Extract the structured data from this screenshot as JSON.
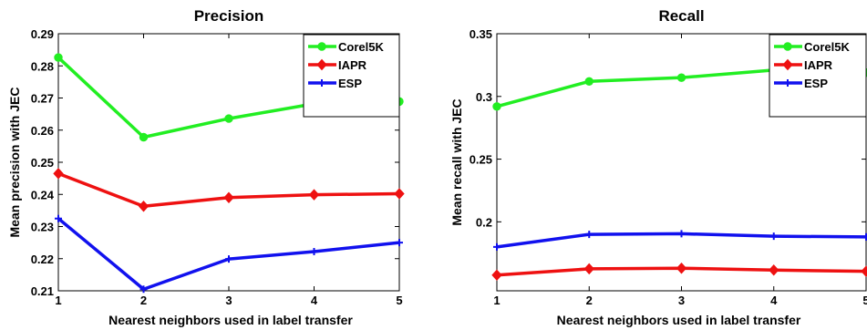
{
  "chart_data": [
    {
      "type": "line",
      "title": "Precision",
      "xlabel": "Nearest neighbors used in label transfer",
      "ylabel": "Mean precision with JEC",
      "x": [
        1,
        2,
        3,
        4,
        5
      ],
      "xlim": [
        1,
        5
      ],
      "ylim": [
        0.21,
        0.29
      ],
      "xticks": [
        "1",
        "2",
        "3",
        "4",
        "5"
      ],
      "yticks": [
        0.21,
        0.22,
        0.23,
        0.24,
        0.25,
        0.26,
        0.27,
        0.28,
        0.29
      ],
      "ytick_labels": [
        "0.21",
        "0.22",
        "0.23",
        "0.24",
        "0.25",
        "0.26",
        "0.27",
        "0.28",
        "0.29"
      ],
      "grid": false,
      "legend": "top-right",
      "series": [
        {
          "name": "Corel5K",
          "color": "#22ee22",
          "marker": "circle",
          "values": [
            0.2826,
            0.2578,
            0.2636,
            0.2682,
            0.2689
          ]
        },
        {
          "name": "IAPR",
          "color": "#ee1111",
          "marker": "diamond",
          "values": [
            0.2465,
            0.2363,
            0.239,
            0.2399,
            0.2402
          ]
        },
        {
          "name": "ESP",
          "color": "#1111ee",
          "marker": "plus",
          "values": [
            0.2325,
            0.2105,
            0.2199,
            0.2222,
            0.225
          ]
        }
      ]
    },
    {
      "type": "line",
      "title": "Recall",
      "xlabel": "Nearest neighbors used in label transfer",
      "ylabel": "Mean recall with JEC",
      "x": [
        1,
        2,
        3,
        4,
        5
      ],
      "xlim": [
        1,
        5
      ],
      "ylim": [
        0.145,
        0.35
      ],
      "xticks": [
        "1",
        "2",
        "3",
        "4",
        "5"
      ],
      "yticks": [
        0.2,
        0.25,
        0.3,
        0.35
      ],
      "ytick_labels": [
        "0.2",
        "0.25",
        "0.3",
        "0.35"
      ],
      "grid": false,
      "legend": "top-right",
      "series": [
        {
          "name": "Corel5K",
          "color": "#22ee22",
          "marker": "circle",
          "values": [
            0.292,
            0.312,
            0.315,
            0.321,
            0.319
          ]
        },
        {
          "name": "IAPR",
          "color": "#ee1111",
          "marker": "diamond",
          "values": [
            0.1575,
            0.1625,
            0.163,
            0.1615,
            0.1605
          ]
        },
        {
          "name": "ESP",
          "color": "#1111ee",
          "marker": "plus",
          "values": [
            0.18,
            0.19,
            0.1905,
            0.1885,
            0.188
          ]
        }
      ]
    }
  ]
}
